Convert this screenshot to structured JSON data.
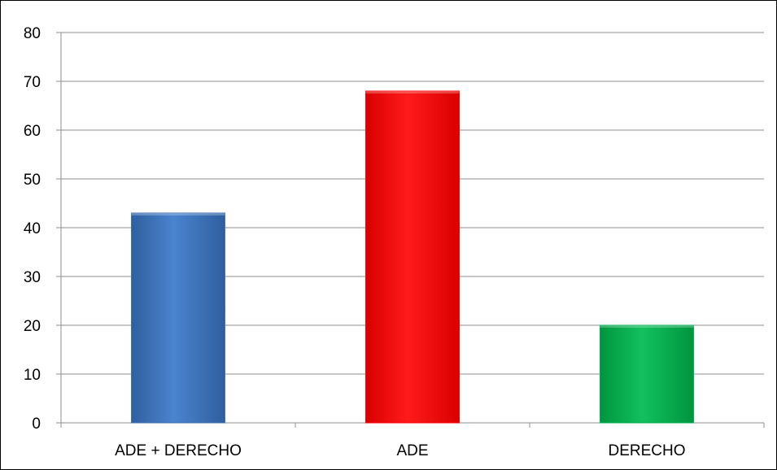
{
  "chart_data": {
    "type": "bar",
    "title": "",
    "xlabel": "",
    "ylabel": "",
    "categories": [
      "ADE + DERECHO",
      "ADE",
      "DERECHO"
    ],
    "values": [
      43,
      68,
      20
    ],
    "colors": [
      "#3d72b8",
      "#ff0000",
      "#00b050"
    ],
    "ylim": [
      0,
      80
    ],
    "yticks": [
      "0",
      "10",
      "20",
      "30",
      "40",
      "50",
      "60",
      "70",
      "80"
    ],
    "grid": true,
    "legend": "none"
  }
}
